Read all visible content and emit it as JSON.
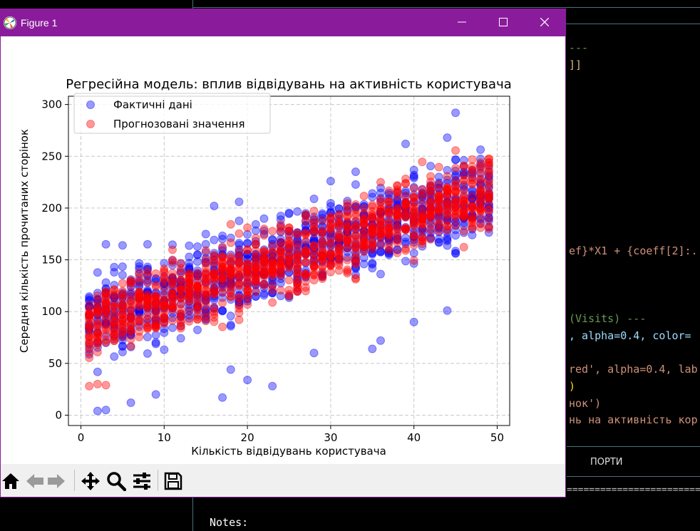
{
  "editor": {
    "code_lines": [
      {
        "text": "---",
        "color": "#6a9955"
      },
      {
        "text": "]]",
        "color": "#d7ba7d"
      },
      {
        "text": "ef}*X1 + {coeff[2]:.",
        "color": "#ce9178"
      },
      {
        "text": "(Visits) ---",
        "color": "#6a9955"
      },
      {
        "text": ", alpha=0.4, color=",
        "color": "#9cdcfe"
      },
      {
        "text": "red', alpha=0.4, lab",
        "color": "#ce9178"
      },
      {
        "text": ")",
        "color": "#ffd700"
      },
      {
        "text": "нок')",
        "color": "#ce9178"
      },
      {
        "text": "нь на активність кор",
        "color": "#ce9178"
      }
    ],
    "panel_tab": "ПОРТИ",
    "notes_label": "Notes:"
  },
  "window": {
    "title": "Figure 1",
    "minimize_icon": "minimize-icon",
    "maximize_icon": "maximize-icon",
    "close_icon": "close-icon"
  },
  "toolbar": {
    "tools": [
      "home-icon",
      "back-icon",
      "forward-icon",
      "pan-icon",
      "zoom-icon",
      "configure-subplots-icon",
      "save-icon"
    ]
  },
  "chart_data": {
    "type": "scatter",
    "title": "Регресійна модель: вплив відвідувань на активність користувача",
    "xlabel": "Кількість відвідувань користувача",
    "ylabel": "Середня кількість прочитаних сторінок",
    "xlim": [
      -1.5,
      51.5
    ],
    "ylim": [
      -10,
      308
    ],
    "xticks": [
      0,
      10,
      20,
      30,
      40,
      50
    ],
    "yticks": [
      0,
      50,
      100,
      150,
      200,
      250,
      300
    ],
    "grid": true,
    "legend_position": "top-left",
    "series": [
      {
        "name": "Фактичні дані",
        "color": "#0000ff",
        "alpha": 0.4,
        "x_range": [
          1,
          49
        ],
        "trend": [
          88,
          2.6
        ],
        "spread": 36,
        "points": [
          [
            2,
            4
          ],
          [
            3,
            5
          ],
          [
            6,
            12
          ],
          [
            17,
            17
          ],
          [
            23,
            28
          ],
          [
            45,
            292
          ],
          [
            39,
            262
          ],
          [
            44,
            268
          ],
          [
            33,
            235
          ],
          [
            30,
            226
          ],
          [
            19,
            206
          ],
          [
            16,
            202
          ],
          [
            3,
            165
          ],
          [
            5,
            164
          ],
          [
            8,
            165
          ],
          [
            40,
            90
          ],
          [
            44,
            101
          ],
          [
            36,
            72
          ],
          [
            35,
            64
          ],
          [
            28,
            60
          ],
          [
            20,
            34
          ],
          [
            18,
            44
          ],
          [
            9,
            20
          ]
        ]
      },
      {
        "name": "Прогнозовані значення",
        "color": "#ff0000",
        "alpha": 0.4,
        "x_range": [
          1,
          49
        ],
        "trend": [
          85,
          2.7
        ],
        "spread": 32,
        "points": [
          [
            1,
            28
          ],
          [
            3,
            29
          ],
          [
            2,
            30
          ],
          [
            48,
            244
          ],
          [
            46,
            240
          ],
          [
            49,
            238
          ]
        ]
      }
    ],
    "legend_labels": [
      "Фактичні дані",
      "Прогнозовані значення"
    ]
  }
}
